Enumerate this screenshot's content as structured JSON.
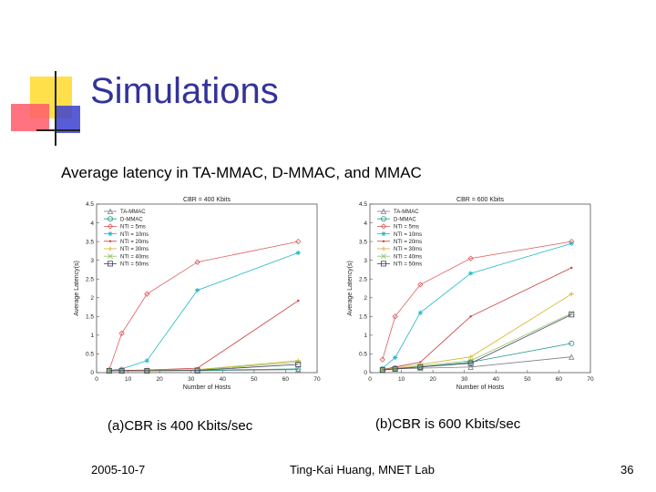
{
  "slide": {
    "title": "Simulations",
    "subtitle": "Average latency in TA-MMAC, D-MMAC, and MMAC",
    "caption_a": "(a)CBR is 400 Kbits/sec",
    "caption_b": "(b)CBR is 600 Kbits/sec",
    "footer_date": "2005-10-7",
    "footer_center": "Ting-Kai Huang, MNET Lab",
    "footer_page": "36"
  },
  "chart_data": [
    {
      "type": "line",
      "title": "CBR = 400 Kbits",
      "xlabel": "Number of Hosts",
      "ylabel": "Average Latency(s)",
      "xlim": [
        0,
        70
      ],
      "ylim": [
        0,
        4.5
      ],
      "xticks": [
        0,
        10,
        20,
        30,
        40,
        50,
        60,
        70
      ],
      "yticks": [
        0,
        0.5,
        1,
        1.5,
        2,
        2.5,
        3,
        3.5,
        4,
        4.5
      ],
      "grid": false,
      "legend": "top-left",
      "x": [
        4,
        8,
        16,
        32,
        64
      ],
      "series": [
        {
          "name": "TA-MMAC",
          "color": "#808080",
          "marker": "triangle",
          "values": [
            0.05,
            0.05,
            0.05,
            0.05,
            0.08
          ]
        },
        {
          "name": "D-MMAC",
          "color": "#1f9a8a",
          "marker": "circle",
          "values": [
            0.05,
            0.05,
            0.05,
            0.06,
            0.1
          ]
        },
        {
          "name": "NTI = 5ms",
          "color": "#e05a5a",
          "marker": "diamond",
          "values": [
            0.07,
            1.05,
            2.1,
            2.95,
            3.5
          ]
        },
        {
          "name": "NTI = 10ms",
          "color": "#22b8c8",
          "marker": "star",
          "values": [
            0.06,
            0.1,
            0.32,
            2.2,
            3.2
          ]
        },
        {
          "name": "NTI = 20ms",
          "color": "#c83a3a",
          "marker": "dot",
          "values": [
            0.05,
            0.06,
            0.07,
            0.12,
            1.92
          ]
        },
        {
          "name": "NTI = 30ms",
          "color": "#d4b020",
          "marker": "plus",
          "values": [
            0.05,
            0.05,
            0.06,
            0.08,
            0.32
          ]
        },
        {
          "name": "NTI = 40ms",
          "color": "#90c060",
          "marker": "x",
          "values": [
            0.05,
            0.05,
            0.05,
            0.07,
            0.28
          ]
        },
        {
          "name": "NTI = 50ms",
          "color": "#404060",
          "marker": "square",
          "values": [
            0.05,
            0.05,
            0.05,
            0.06,
            0.22
          ]
        }
      ]
    },
    {
      "type": "line",
      "title": "CBR = 600 Kbits",
      "xlabel": "Number of Hosts",
      "ylabel": "Average Latency(s)",
      "xlim": [
        0,
        70
      ],
      "ylim": [
        0,
        4.5
      ],
      "xticks": [
        0,
        10,
        20,
        30,
        40,
        50,
        60,
        70
      ],
      "yticks": [
        0,
        0.5,
        1,
        1.5,
        2,
        2.5,
        3,
        3.5,
        4,
        4.5
      ],
      "grid": false,
      "legend": "top-left",
      "x": [
        4,
        8,
        16,
        32,
        64
      ],
      "series": [
        {
          "name": "TA-MMAC",
          "color": "#808080",
          "marker": "triangle",
          "values": [
            0.07,
            0.1,
            0.12,
            0.15,
            0.42
          ]
        },
        {
          "name": "D-MMAC",
          "color": "#1f9a8a",
          "marker": "circle",
          "values": [
            0.08,
            0.12,
            0.15,
            0.28,
            0.78
          ]
        },
        {
          "name": "NTI = 5ms",
          "color": "#e05a5a",
          "marker": "diamond",
          "values": [
            0.35,
            1.5,
            2.35,
            3.05,
            3.5
          ]
        },
        {
          "name": "NTI = 10ms",
          "color": "#22b8c8",
          "marker": "star",
          "values": [
            0.12,
            0.4,
            1.6,
            2.65,
            3.45
          ]
        },
        {
          "name": "NTI = 20ms",
          "color": "#c83a3a",
          "marker": "dot",
          "values": [
            0.08,
            0.15,
            0.28,
            1.5,
            2.8
          ]
        },
        {
          "name": "NTI = 30ms",
          "color": "#d4b020",
          "marker": "plus",
          "values": [
            0.07,
            0.12,
            0.22,
            0.42,
            2.1
          ]
        },
        {
          "name": "NTI = 40ms",
          "color": "#90c060",
          "marker": "x",
          "values": [
            0.07,
            0.1,
            0.18,
            0.32,
            1.58
          ]
        },
        {
          "name": "NTI = 50ms",
          "color": "#404060",
          "marker": "square",
          "values": [
            0.07,
            0.1,
            0.15,
            0.25,
            1.55
          ]
        }
      ]
    }
  ]
}
